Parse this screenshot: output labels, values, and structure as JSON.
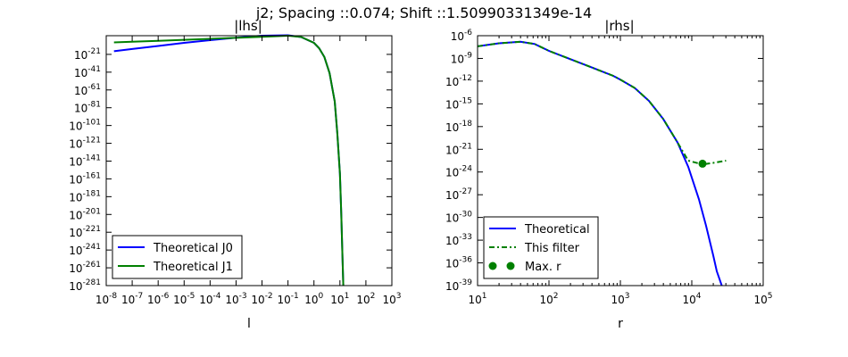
{
  "figure": {
    "suptitle": "j2; Spacing ::0.074; Shift ::1.50990331349e-14"
  },
  "chart_data": [
    {
      "type": "line",
      "title": "|lhs|",
      "xlabel": "l",
      "ylabel": "",
      "xscale": "log",
      "yscale": "log",
      "xlim": [
        1e-08,
        1000
      ],
      "ylim_exponent": [
        -281,
        0
      ],
      "x_ticks": [
        {
          "b": "10",
          "e": "-8"
        },
        {
          "b": "10",
          "e": "-7"
        },
        {
          "b": "10",
          "e": "-6"
        },
        {
          "b": "10",
          "e": "-5"
        },
        {
          "b": "10",
          "e": "-4"
        },
        {
          "b": "10",
          "e": "-3"
        },
        {
          "b": "10",
          "e": "-2"
        },
        {
          "b": "10",
          "e": "-1"
        },
        {
          "b": "10",
          "e": "0"
        },
        {
          "b": "10",
          "e": "1"
        },
        {
          "b": "10",
          "e": "2"
        },
        {
          "b": "10",
          "e": "3"
        }
      ],
      "y_ticks": [
        {
          "b": "10",
          "e": "-21"
        },
        {
          "b": "10",
          "e": "-41"
        },
        {
          "b": "10",
          "e": "-61"
        },
        {
          "b": "10",
          "e": "-81"
        },
        {
          "b": "10",
          "e": "-101"
        },
        {
          "b": "10",
          "e": "-121"
        },
        {
          "b": "10",
          "e": "-141"
        },
        {
          "b": "10",
          "e": "-161"
        },
        {
          "b": "10",
          "e": "-181"
        },
        {
          "b": "10",
          "e": "-201"
        },
        {
          "b": "10",
          "e": "-221"
        },
        {
          "b": "10",
          "e": "-241"
        },
        {
          "b": "10",
          "e": "-261"
        },
        {
          "b": "10",
          "e": "-281"
        }
      ],
      "legend": {
        "position": "lower-left"
      },
      "series": [
        {
          "name": "Theoretical J0",
          "color": "#0000ff",
          "style": "solid",
          "points_log10": [
            [
              -7.7,
              -17.5
            ],
            [
              -7,
              -15
            ],
            [
              -6,
              -11.5
            ],
            [
              -5,
              -8
            ],
            [
              -4,
              -5
            ],
            [
              -3,
              -2.2
            ],
            [
              -2,
              0
            ],
            [
              -1.5,
              0.3
            ],
            [
              -1,
              0.5
            ],
            [
              -0.5,
              -1.5
            ],
            [
              0,
              -8
            ],
            [
              0.2,
              -14
            ],
            [
              0.4,
              -24
            ],
            [
              0.6,
              -42
            ],
            [
              0.8,
              -74
            ],
            [
              0.9,
              -110
            ],
            [
              1.0,
              -155
            ],
            [
              1.05,
              -200
            ],
            [
              1.1,
              -250
            ],
            [
              1.13,
              -281
            ]
          ]
        },
        {
          "name": "Theoretical J1",
          "color": "#008000",
          "style": "solid",
          "points_log10": [
            [
              -7.7,
              -7.5
            ],
            [
              -7,
              -6.8
            ],
            [
              -6,
              -5.7
            ],
            [
              -5,
              -4.6
            ],
            [
              -4,
              -3.5
            ],
            [
              -3,
              -2.4
            ],
            [
              -2,
              -1.3
            ],
            [
              -1.5,
              -0.6
            ],
            [
              -1,
              0
            ],
            [
              -0.5,
              -1.4
            ],
            [
              0,
              -8
            ],
            [
              0.2,
              -14
            ],
            [
              0.4,
              -24
            ],
            [
              0.6,
              -42
            ],
            [
              0.8,
              -74
            ],
            [
              0.9,
              -110
            ],
            [
              1.0,
              -155
            ],
            [
              1.05,
              -200
            ],
            [
              1.1,
              -250
            ],
            [
              1.13,
              -281
            ]
          ]
        }
      ]
    },
    {
      "type": "line",
      "title": "|rhs|",
      "xlabel": "r",
      "ylabel": "",
      "xscale": "log",
      "yscale": "log",
      "xlim": [
        10,
        100000
      ],
      "ylim_exponent": [
        -39,
        -6
      ],
      "x_ticks": [
        {
          "b": "10",
          "e": "1"
        },
        {
          "b": "10",
          "e": "2"
        },
        {
          "b": "10",
          "e": "3"
        },
        {
          "b": "10",
          "e": "4"
        },
        {
          "b": "10",
          "e": "5"
        }
      ],
      "y_ticks": [
        {
          "b": "10",
          "e": "-6"
        },
        {
          "b": "10",
          "e": "-9"
        },
        {
          "b": "10",
          "e": "-12"
        },
        {
          "b": "10",
          "e": "-15"
        },
        {
          "b": "10",
          "e": "-18"
        },
        {
          "b": "10",
          "e": "-21"
        },
        {
          "b": "10",
          "e": "-24"
        },
        {
          "b": "10",
          "e": "-27"
        },
        {
          "b": "10",
          "e": "-30"
        },
        {
          "b": "10",
          "e": "-33"
        },
        {
          "b": "10",
          "e": "-36"
        },
        {
          "b": "10",
          "e": "-39"
        }
      ],
      "legend": {
        "position": "lower-left"
      },
      "series": [
        {
          "name": "Theoretical",
          "color": "#0000ff",
          "style": "solid",
          "points_log10": [
            [
              1,
              -7.4
            ],
            [
              1.3,
              -7.0
            ],
            [
              1.6,
              -6.8
            ],
            [
              1.8,
              -7.1
            ],
            [
              2,
              -8.0
            ],
            [
              2.3,
              -9.1
            ],
            [
              2.6,
              -10.2
            ],
            [
              2.9,
              -11.3
            ],
            [
              3,
              -11.8
            ],
            [
              3.2,
              -12.9
            ],
            [
              3.4,
              -14.6
            ],
            [
              3.6,
              -17.0
            ],
            [
              3.8,
              -20.1
            ],
            [
              3.95,
              -23.3
            ],
            [
              4.1,
              -27.6
            ],
            [
              4.2,
              -31.1
            ],
            [
              4.3,
              -35.0
            ],
            [
              4.35,
              -37.1
            ],
            [
              4.42,
              -39
            ]
          ]
        },
        {
          "name": "This filter",
          "color": "#008000",
          "style": "dashdot",
          "points_log10": [
            [
              1,
              -7.4
            ],
            [
              1.3,
              -7.0
            ],
            [
              1.6,
              -6.8
            ],
            [
              1.8,
              -7.1
            ],
            [
              2,
              -8.0
            ],
            [
              2.3,
              -9.1
            ],
            [
              2.6,
              -10.2
            ],
            [
              2.9,
              -11.3
            ],
            [
              3,
              -11.8
            ],
            [
              3.2,
              -12.9
            ],
            [
              3.4,
              -14.6
            ],
            [
              3.6,
              -17.0
            ],
            [
              3.8,
              -20.1
            ],
            [
              3.95,
              -22.5
            ],
            [
              4.15,
              -23.0
            ],
            [
              4.3,
              -22.8
            ],
            [
              4.48,
              -22.5
            ]
          ]
        },
        {
          "name": "Max. r",
          "color": "#008000",
          "style": "marker",
          "points_log10": [
            [
              4.15,
              -22.9
            ]
          ]
        }
      ]
    }
  ]
}
